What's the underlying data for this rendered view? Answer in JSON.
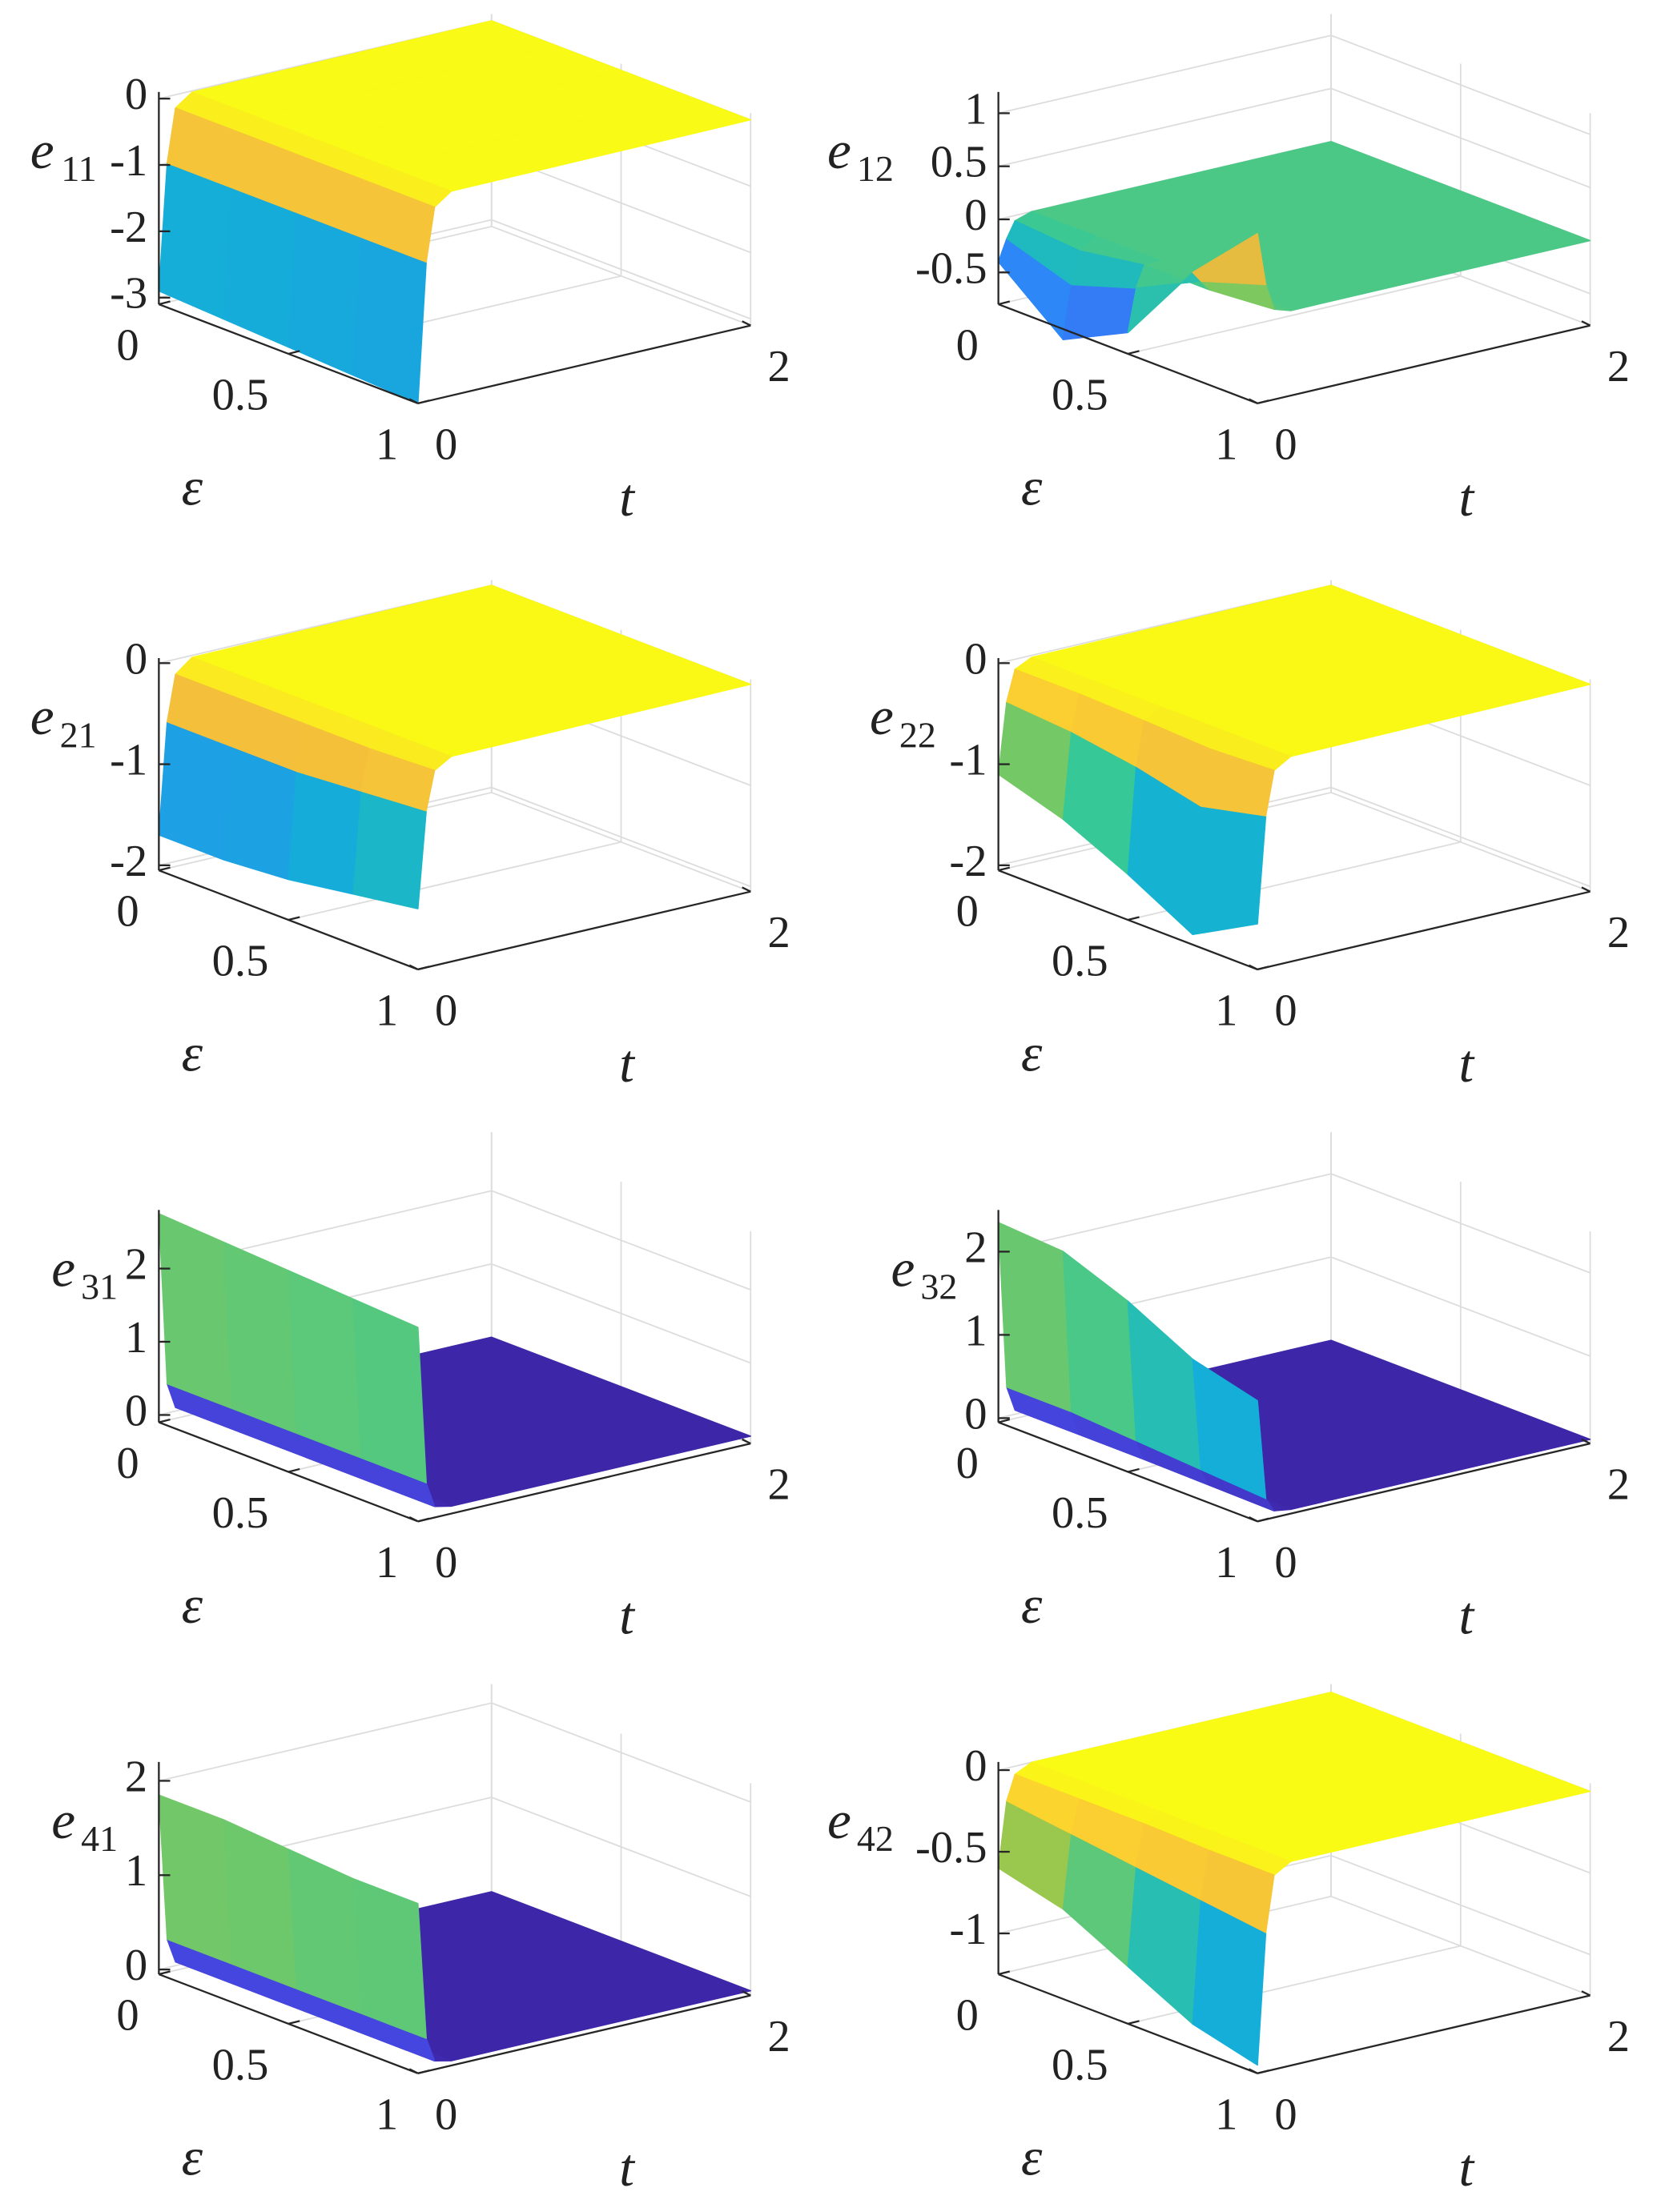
{
  "chart_data": [
    {
      "type": "surface",
      "zlabel": "e",
      "zlabel_subscript": "11",
      "xlabel": "ε",
      "ylabel": "t",
      "x": [
        0,
        0.25,
        0.5,
        0.75,
        1
      ],
      "y": [
        0,
        0.05,
        0.1,
        0.2,
        2
      ],
      "z": [
        [
          -2.9,
          -1,
          -0.2,
          -0.02,
          0
        ],
        [
          -2.95,
          -1,
          -0.2,
          -0.02,
          0
        ],
        [
          -3,
          -1,
          -0.2,
          -0.02,
          0
        ],
        [
          -3.05,
          -1,
          -0.2,
          -0.02,
          0
        ],
        [
          -3.1,
          -1,
          -0.2,
          -0.02,
          0
        ]
      ],
      "xlim": [
        0,
        1
      ],
      "ylim": [
        0,
        2
      ],
      "zlim": [
        -3.1,
        0.1
      ],
      "xticks": [
        0,
        0.5,
        1
      ],
      "yticks": [
        0,
        2
      ],
      "zticks": [
        -3,
        -2,
        -1,
        0
      ],
      "grid": true
    },
    {
      "type": "surface",
      "zlabel": "e",
      "zlabel_subscript": "12",
      "xlabel": "ε",
      "ylabel": "t",
      "x": [
        0,
        0.25,
        0.5,
        0.75,
        1
      ],
      "y": [
        0,
        0.05,
        0.1,
        0.2,
        2
      ],
      "z": [
        [
          -0.4,
          -0.2,
          -0.05,
          0,
          0
        ],
        [
          -0.9,
          -0.4,
          -0.1,
          0,
          0
        ],
        [
          -0.6,
          -0.2,
          0,
          0,
          0
        ],
        [
          0.2,
          0.1,
          0,
          0,
          0
        ],
        [
          0.8,
          0.3,
          0.05,
          0,
          0
        ]
      ],
      "xlim": [
        0,
        1
      ],
      "ylim": [
        0,
        2
      ],
      "zlim": [
        -0.8,
        1.2
      ],
      "xticks": [
        0,
        0.5,
        1
      ],
      "yticks": [
        0,
        2
      ],
      "zticks": [
        -0.5,
        0,
        0.5,
        1
      ],
      "grid": true
    },
    {
      "type": "surface",
      "zlabel": "e",
      "zlabel_subscript": "21",
      "xlabel": "ε",
      "ylabel": "t",
      "x": [
        0,
        0.25,
        0.5,
        0.75,
        1
      ],
      "y": [
        0,
        0.05,
        0.1,
        0.2,
        2
      ],
      "z": [
        [
          -1.7,
          -0.6,
          -0.15,
          -0.02,
          0
        ],
        [
          -1.7,
          -0.6,
          -0.15,
          -0.02,
          0
        ],
        [
          -1.65,
          -0.6,
          -0.15,
          -0.02,
          0
        ],
        [
          -1.55,
          -0.55,
          -0.15,
          -0.02,
          0
        ],
        [
          -1.45,
          -0.5,
          -0.12,
          -0.02,
          0
        ]
      ],
      "xlim": [
        0,
        1
      ],
      "ylim": [
        0,
        2
      ],
      "zlim": [
        -2.05,
        0.05
      ],
      "xticks": [
        0,
        0.5,
        1
      ],
      "yticks": [
        0,
        2
      ],
      "zticks": [
        -2,
        -1,
        0
      ],
      "grid": true
    },
    {
      "type": "surface",
      "zlabel": "e",
      "zlabel_subscript": "22",
      "xlabel": "ε",
      "ylabel": "t",
      "x": [
        0,
        0.25,
        0.5,
        0.75,
        1
      ],
      "y": [
        0,
        0.05,
        0.1,
        0.2,
        2
      ],
      "z": [
        [
          -1.1,
          -0.4,
          -0.1,
          -0.02,
          0
        ],
        [
          -1.3,
          -0.45,
          -0.1,
          -0.02,
          0
        ],
        [
          -1.6,
          -0.55,
          -0.12,
          -0.02,
          0
        ],
        [
          -1.95,
          -0.7,
          -0.15,
          -0.02,
          0
        ],
        [
          -1.6,
          -0.55,
          -0.12,
          -0.02,
          0
        ]
      ],
      "xlim": [
        0,
        1
      ],
      "ylim": [
        0,
        2
      ],
      "zlim": [
        -2.05,
        0.05
      ],
      "xticks": [
        0,
        0.5,
        1
      ],
      "yticks": [
        0,
        2
      ],
      "zticks": [
        -2,
        -1,
        0
      ],
      "grid": true
    },
    {
      "type": "surface",
      "zlabel": "e",
      "zlabel_subscript": "31",
      "xlabel": "ε",
      "ylabel": "t",
      "x": [
        0,
        0.25,
        0.5,
        0.75,
        1
      ],
      "y": [
        0,
        0.05,
        0.1,
        0.2,
        2
      ],
      "z": [
        [
          2.75,
          0.4,
          0.05,
          0,
          0
        ],
        [
          2.7,
          0.4,
          0.05,
          0,
          0
        ],
        [
          2.65,
          0.4,
          0.05,
          0,
          0
        ],
        [
          2.6,
          0.4,
          0.05,
          0,
          0
        ],
        [
          2.55,
          0.4,
          0.05,
          0,
          0
        ]
      ],
      "xlim": [
        0,
        1
      ],
      "ylim": [
        0,
        2
      ],
      "zlim": [
        -0.1,
        2.8
      ],
      "xticks": [
        0,
        0.5,
        1
      ],
      "yticks": [
        0,
        2
      ],
      "zticks": [
        0,
        1,
        2
      ],
      "grid": true
    },
    {
      "type": "surface",
      "zlabel": "e",
      "zlabel_subscript": "32",
      "xlabel": "ε",
      "ylabel": "t",
      "x": [
        0,
        0.25,
        0.5,
        0.75,
        1
      ],
      "y": [
        0,
        0.05,
        0.1,
        0.2,
        2
      ],
      "z": [
        [
          2.35,
          0.35,
          0.05,
          0,
          0
        ],
        [
          2.3,
          0.35,
          0.05,
          0,
          0
        ],
        [
          2.0,
          0.3,
          0.05,
          0,
          0
        ],
        [
          1.6,
          0.25,
          0.04,
          0,
          0
        ],
        [
          1.4,
          0.2,
          0.03,
          0,
          0
        ]
      ],
      "xlim": [
        0,
        1
      ],
      "ylim": [
        0,
        2
      ],
      "zlim": [
        -0.05,
        2.5
      ],
      "xticks": [
        0,
        0.5,
        1
      ],
      "yticks": [
        0,
        2
      ],
      "zticks": [
        0,
        1,
        2
      ],
      "grid": true
    },
    {
      "type": "surface",
      "zlabel": "e",
      "zlabel_subscript": "41",
      "xlabel": "ε",
      "ylabel": "t",
      "x": [
        0,
        0.25,
        0.5,
        0.75,
        1
      ],
      "y": [
        0,
        0.05,
        0.1,
        0.2,
        2
      ],
      "z": [
        [
          1.85,
          0.3,
          0.04,
          0,
          0
        ],
        [
          1.85,
          0.3,
          0.04,
          0,
          0
        ],
        [
          1.8,
          0.3,
          0.04,
          0,
          0
        ],
        [
          1.75,
          0.3,
          0.04,
          0,
          0
        ],
        [
          1.75,
          0.3,
          0.04,
          0,
          0
        ]
      ],
      "xlim": [
        0,
        1
      ],
      "ylim": [
        0,
        2
      ],
      "zlim": [
        -0.05,
        2.2
      ],
      "xticks": [
        0,
        0.5,
        1
      ],
      "yticks": [
        0,
        2
      ],
      "zticks": [
        0,
        1,
        2
      ],
      "grid": true
    },
    {
      "type": "surface",
      "zlabel": "e",
      "zlabel_subscript": "42",
      "xlabel": "ε",
      "ylabel": "t",
      "x": [
        0,
        0.25,
        0.5,
        0.75,
        1
      ],
      "y": [
        0,
        0.05,
        0.1,
        0.2,
        2
      ],
      "z": [
        [
          -0.6,
          -0.2,
          -0.05,
          0,
          0
        ],
        [
          -0.7,
          -0.25,
          -0.05,
          0,
          0
        ],
        [
          -0.9,
          -0.3,
          -0.05,
          0,
          0
        ],
        [
          -1.1,
          -0.35,
          -0.06,
          0,
          0
        ],
        [
          -1.2,
          -0.4,
          -0.06,
          0,
          0
        ]
      ],
      "xlim": [
        0,
        1
      ],
      "ylim": [
        0,
        2
      ],
      "zlim": [
        -1.25,
        0.05
      ],
      "xticks": [
        0,
        0.5,
        1
      ],
      "yticks": [
        0,
        2
      ],
      "zticks": [
        -1,
        -0.5,
        0
      ],
      "grid": true
    }
  ]
}
